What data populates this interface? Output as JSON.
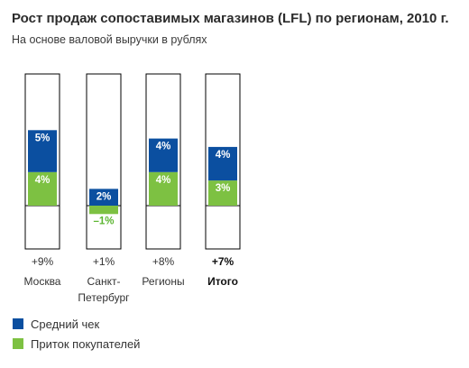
{
  "colors": {
    "avg_check": "#0b4fa0",
    "inflow": "#7dc142",
    "negative_label": "#5cb531",
    "frame": "#000000"
  },
  "chart_data": {
    "type": "bar",
    "stacked": true,
    "title": "Рост продаж сопоставимых магазинов (LFL) по регионам, 2010 г.",
    "subtitle": "На основе валовой выручки в рублях",
    "unit": "%",
    "categories": [
      "Москва",
      "Санкт-Петербург",
      "Регионы",
      "Итого"
    ],
    "category_lines": [
      [
        "Москва"
      ],
      [
        "Санкт-",
        "Петербург"
      ],
      [
        "Регионы"
      ],
      [
        "Итого"
      ]
    ],
    "bold_category": "Итого",
    "totals": [
      9,
      1,
      8,
      7
    ],
    "total_labels": [
      "+9%",
      "+1%",
      "+8%",
      "+7%"
    ],
    "series": [
      {
        "name": "Средний чек",
        "values": [
          5,
          2,
          4,
          4
        ],
        "labels": [
          "5%",
          "2%",
          "4%",
          "4%"
        ]
      },
      {
        "name": "Приток покупателей",
        "values": [
          4,
          -1,
          4,
          3
        ],
        "labels": [
          "4%",
          "–1%",
          "4%",
          "3%"
        ]
      }
    ],
    "ylim": [
      -5,
      14
    ],
    "legend": "bottom-left",
    "grid": false
  },
  "legend": {
    "items": [
      {
        "label": "Средний чек",
        "color": "#0b4fa0"
      },
      {
        "label": "Приток покупателей",
        "color": "#7dc142"
      }
    ]
  }
}
